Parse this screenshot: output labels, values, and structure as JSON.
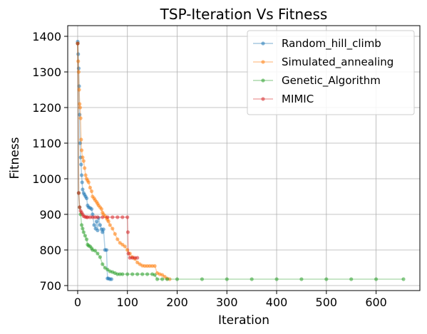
{
  "chart_data": {
    "type": "line",
    "title": "TSP-Iteration Vs Fitness",
    "xlabel": "Iteration",
    "ylabel": "Fitness",
    "xlim": [
      -20,
      688
    ],
    "ylim": [
      686,
      1430
    ],
    "xticks": [
      0,
      100,
      200,
      300,
      400,
      500,
      600
    ],
    "yticks": [
      700,
      800,
      900,
      1000,
      1100,
      1200,
      1300,
      1400
    ],
    "grid": true,
    "legend_position": "top-right",
    "series": [
      {
        "name": "Random_hill_climb",
        "color": "#1f77b4",
        "x": [
          0,
          1,
          2,
          3,
          4,
          5,
          6,
          7,
          8,
          9,
          10,
          12,
          14,
          16,
          18,
          20,
          22,
          25,
          28,
          30,
          33,
          36,
          38,
          40,
          42,
          45,
          48,
          50,
          52,
          55,
          58,
          60,
          62,
          65,
          68
        ],
        "y": [
          1385,
          1350,
          1310,
          1260,
          1180,
          1100,
          1060,
          1040,
          1010,
          990,
          970,
          960,
          955,
          950,
          945,
          925,
          920,
          918,
          915,
          900,
          870,
          860,
          880,
          855,
          890,
          870,
          858,
          850,
          858,
          800,
          800,
          720,
          720,
          718,
          718
        ]
      },
      {
        "name": "Simulated_annealing",
        "color": "#ff7f0e",
        "x": [
          0,
          1,
          2,
          3,
          4,
          5,
          6,
          7,
          8,
          10,
          12,
          14,
          16,
          18,
          20,
          22,
          25,
          28,
          30,
          33,
          35,
          38,
          40,
          42,
          45,
          48,
          50,
          52,
          55,
          58,
          60,
          62,
          65,
          70,
          75,
          80,
          85,
          90,
          95,
          100,
          105,
          110,
          115,
          120,
          125,
          130,
          135,
          140,
          145,
          150,
          155,
          160,
          165,
          170,
          175,
          180,
          185
        ],
        "y": [
          1380,
          1330,
          1300,
          1250,
          1210,
          1200,
          1170,
          1110,
          1080,
          1060,
          1050,
          1030,
          1010,
          1000,
          995,
          990,
          975,
          965,
          950,
          945,
          940,
          935,
          930,
          925,
          920,
          915,
          905,
          900,
          895,
          890,
          885,
          880,
          870,
          860,
          845,
          830,
          820,
          815,
          810,
          800,
          790,
          780,
          775,
          765,
          760,
          756,
          755,
          755,
          755,
          755,
          755,
          735,
          732,
          730,
          725,
          720,
          718
        ]
      },
      {
        "name": "Genetic_Algorithm",
        "color": "#2ca02c",
        "x": [
          0,
          2,
          4,
          6,
          8,
          10,
          12,
          15,
          18,
          20,
          22,
          25,
          28,
          30,
          35,
          40,
          45,
          50,
          55,
          60,
          65,
          70,
          75,
          80,
          85,
          90,
          100,
          110,
          120,
          130,
          140,
          150,
          155,
          160,
          170,
          180,
          200,
          250,
          300,
          350,
          400,
          450,
          500,
          550,
          600,
          655
        ],
        "y": [
          1380,
          960,
          920,
          900,
          870,
          860,
          850,
          840,
          830,
          815,
          812,
          810,
          805,
          800,
          798,
          790,
          780,
          760,
          750,
          745,
          740,
          738,
          735,
          732,
          732,
          732,
          732,
          732,
          732,
          732,
          732,
          732,
          730,
          718,
          718,
          718,
          718,
          718,
          718,
          718,
          718,
          718,
          718,
          718,
          718,
          718
        ]
      },
      {
        "name": "MIMIC",
        "color": "#d62728",
        "x": [
          0,
          2,
          4,
          6,
          8,
          10,
          12,
          15,
          18,
          20,
          25,
          30,
          35,
          40,
          50,
          60,
          70,
          80,
          90,
          100,
          101,
          102,
          105,
          110,
          115,
          120
        ],
        "y": [
          1380,
          960,
          920,
          910,
          905,
          900,
          895,
          893,
          892,
          892,
          892,
          892,
          892,
          892,
          892,
          892,
          892,
          892,
          892,
          892,
          850,
          790,
          778,
          778,
          778,
          778
        ]
      }
    ]
  }
}
